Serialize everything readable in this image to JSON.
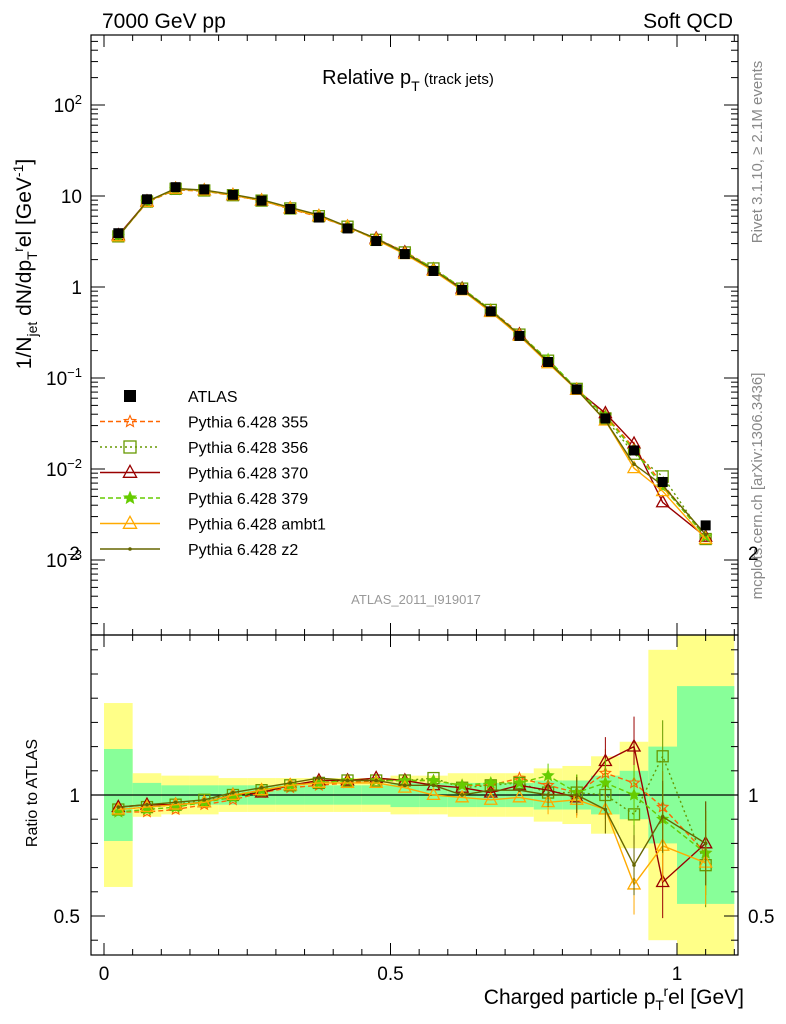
{
  "header": {
    "left": "7000 GeV pp",
    "right": "Soft QCD"
  },
  "plot_title": {
    "main": "Relative p",
    "sub": "T",
    "extra": " (track jets)"
  },
  "side_labels": {
    "rivet": "Rivet 3.1.10, ≥ 2.1M events",
    "mcplots": "mcplots.cern.ch [arXiv:1306.3436]"
  },
  "watermark": "ATLAS_2011_I919017",
  "ratio_ylabel": "Ratio to ATLAS",
  "chart_data": {
    "type": "line",
    "title": "Relative pT (track jets)",
    "xlabel": "Charged particle pTrel [GeV]",
    "ylabel": "1/Njet dN/dpTrel [GeV⁻¹]",
    "yscale": "log",
    "xlim": [
      -0.04,
      1.12
    ],
    "ylim": [
      0.00015,
      800
    ],
    "ratio_ylim": [
      0.35,
      2.3
    ],
    "x_ticks": [
      "0",
      "0.5",
      "1"
    ],
    "y_ticks": [
      "10⁻³",
      "10⁻²",
      "10⁻¹",
      "1",
      "10",
      "10²"
    ],
    "ratio_ticks": [
      "0.5",
      "1",
      "2"
    ],
    "x": [
      0.025,
      0.075,
      0.125,
      0.175,
      0.225,
      0.275,
      0.325,
      0.375,
      0.425,
      0.475,
      0.525,
      0.575,
      0.625,
      0.675,
      0.725,
      0.775,
      0.825,
      0.875,
      0.925,
      0.975,
      1.05
    ],
    "data": {
      "name": "ATLAS",
      "values": [
        3.9,
        9.2,
        12.5,
        11.8,
        10.3,
        8.9,
        7.2,
        5.8,
        4.4,
        3.2,
        2.3,
        1.5,
        0.93,
        0.54,
        0.29,
        0.15,
        0.075,
        0.036,
        0.016,
        0.0072,
        0.0024
      ]
    },
    "series": [
      {
        "name": "Pythia 6.428 355",
        "color": "#ff6600",
        "values": [
          3.6,
          8.5,
          11.7,
          11.3,
          10.1,
          8.9,
          7.2,
          5.9,
          4.6,
          3.4,
          2.45,
          1.6,
          0.97,
          0.56,
          0.31,
          0.155,
          0.076,
          0.039,
          0.017,
          0.0068,
          0.0018
        ],
        "ratio": [
          0.93,
          0.93,
          0.94,
          0.96,
          0.98,
          1.01,
          1.03,
          1.04,
          1.05,
          1.06,
          1.06,
          1.06,
          1.04,
          1.04,
          1.07,
          1.04,
          1.01,
          1.09,
          1.05,
          0.95,
          0.76
        ]
      },
      {
        "name": "Pythia 6.428 356",
        "color": "#669900",
        "values": [
          3.6,
          8.7,
          12.0,
          11.5,
          10.2,
          8.9,
          7.3,
          6.0,
          4.6,
          3.3,
          2.4,
          1.6,
          0.96,
          0.56,
          0.3,
          0.155,
          0.076,
          0.036,
          0.0147,
          0.0083,
          0.0017
        ],
        "ratio": [
          0.94,
          0.95,
          0.96,
          0.98,
          1.0,
          1.02,
          1.04,
          1.05,
          1.06,
          1.06,
          1.06,
          1.07,
          1.03,
          1.04,
          1.05,
          1.01,
          1.01,
          1.0,
          0.92,
          1.16,
          0.71
        ]
      },
      {
        "name": "Pythia 6.428 370",
        "color": "#990000",
        "values": [
          3.7,
          8.7,
          12.0,
          11.5,
          10.2,
          8.9,
          7.3,
          6.0,
          4.6,
          3.4,
          2.4,
          1.55,
          0.96,
          0.54,
          0.3,
          0.15,
          0.074,
          0.041,
          0.019,
          0.0043,
          0.0018
        ],
        "ratio": [
          0.95,
          0.96,
          0.96,
          0.97,
          1.0,
          1.01,
          1.04,
          1.06,
          1.06,
          1.07,
          1.06,
          1.04,
          1.03,
          1.01,
          1.04,
          1.02,
          0.99,
          1.14,
          1.2,
          0.64,
          0.8
        ]
      },
      {
        "name": "Pythia 6.428 379",
        "color": "#66cc00",
        "values": [
          3.6,
          8.6,
          11.9,
          11.4,
          10.2,
          8.9,
          7.3,
          6.0,
          4.6,
          3.4,
          2.4,
          1.6,
          0.97,
          0.56,
          0.3,
          0.16,
          0.076,
          0.038,
          0.016,
          0.0064,
          0.0018
        ],
        "ratio": [
          0.93,
          0.94,
          0.95,
          0.97,
          0.99,
          1.02,
          1.04,
          1.05,
          1.06,
          1.06,
          1.06,
          1.06,
          1.04,
          1.05,
          1.05,
          1.08,
          1.01,
          1.05,
          1.0,
          0.9,
          0.76
        ]
      },
      {
        "name": "Pythia 6.428 ambt1",
        "color": "#ffaa00",
        "values": [
          3.6,
          8.6,
          12.0,
          11.5,
          10.2,
          8.9,
          7.3,
          6.0,
          4.6,
          3.3,
          2.3,
          1.5,
          0.92,
          0.53,
          0.29,
          0.145,
          0.074,
          0.034,
          0.0102,
          0.0057,
          0.0017
        ],
        "ratio": [
          0.94,
          0.95,
          0.96,
          0.97,
          1.0,
          1.02,
          1.04,
          1.05,
          1.05,
          1.05,
          1.03,
          1.0,
          0.99,
          0.98,
          0.99,
          0.97,
          0.98,
          0.94,
          0.63,
          0.79,
          0.72
        ]
      },
      {
        "name": "Pythia 6.428 z2",
        "color": "#666600",
        "values": [
          3.6,
          8.7,
          12.1,
          11.6,
          10.4,
          9.1,
          7.5,
          6.2,
          4.6,
          3.4,
          2.35,
          1.55,
          0.94,
          0.55,
          0.3,
          0.15,
          0.075,
          0.034,
          0.0113,
          0.0066,
          0.0019
        ],
        "ratio": [
          0.95,
          0.96,
          0.97,
          0.98,
          1.01,
          1.03,
          1.05,
          1.07,
          1.06,
          1.06,
          1.04,
          1.04,
          1.0,
          1.02,
          1.02,
          1.0,
          1.0,
          0.94,
          0.71,
          0.91,
          0.8
        ]
      }
    ],
    "ratio_band": {
      "edges": [
        0,
        0.05,
        0.1,
        0.15,
        0.2,
        0.25,
        0.3,
        0.35,
        0.4,
        0.45,
        0.5,
        0.55,
        0.6,
        0.65,
        0.7,
        0.75,
        0.8,
        0.85,
        0.9,
        0.95,
        1.0,
        1.1
      ],
      "inner": [
        0.19,
        0.05,
        0.04,
        0.04,
        0.04,
        0.04,
        0.04,
        0.04,
        0.04,
        0.04,
        0.05,
        0.05,
        0.05,
        0.05,
        0.05,
        0.06,
        0.06,
        0.08,
        0.1,
        0.2,
        0.45
      ],
      "outer": [
        0.38,
        0.09,
        0.08,
        0.08,
        0.07,
        0.07,
        0.07,
        0.07,
        0.07,
        0.07,
        0.08,
        0.08,
        0.09,
        0.09,
        0.09,
        0.11,
        0.12,
        0.16,
        0.22,
        0.6,
        1.0
      ]
    },
    "legend_position": "middle-left",
    "grid": false
  }
}
